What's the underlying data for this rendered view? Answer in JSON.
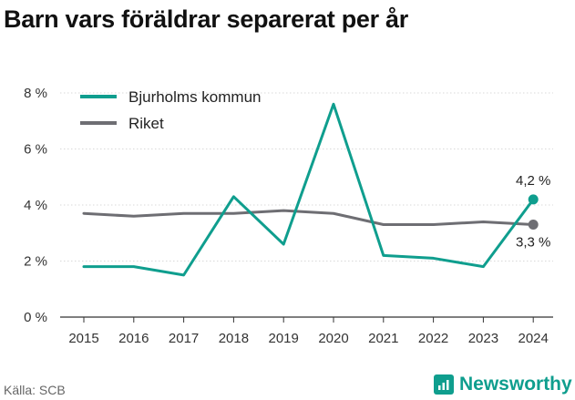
{
  "title": "Barn vars föräldrar separerat per år",
  "source": "Källa: SCB",
  "brand": "Newsworthy",
  "colors": {
    "kommun": "#0f9e8e",
    "riket": "#6e6e73",
    "brand": "#0f9e8e"
  },
  "chart_data": {
    "type": "line",
    "title": "Barn vars föräldrar separerat per år",
    "x": [
      "2015",
      "2016",
      "2017",
      "2018",
      "2019",
      "2020",
      "2021",
      "2022",
      "2023",
      "2024"
    ],
    "ylim": [
      0,
      8
    ],
    "yticks": [
      "0 %",
      "2 %",
      "4 %",
      "6 %",
      "8 %"
    ],
    "ytick_values": [
      0,
      2,
      4,
      6,
      8
    ],
    "grid": true,
    "legend": "top-left",
    "series": [
      {
        "name": "Bjurholms kommun",
        "values": [
          1.8,
          1.8,
          1.5,
          4.3,
          2.6,
          7.6,
          2.2,
          2.1,
          1.8,
          4.2
        ],
        "end_label": "4,2 %"
      },
      {
        "name": "Riket",
        "values": [
          3.7,
          3.6,
          3.7,
          3.7,
          3.8,
          3.7,
          3.3,
          3.3,
          3.4,
          3.3
        ],
        "end_label": "3,3 %"
      }
    ]
  }
}
